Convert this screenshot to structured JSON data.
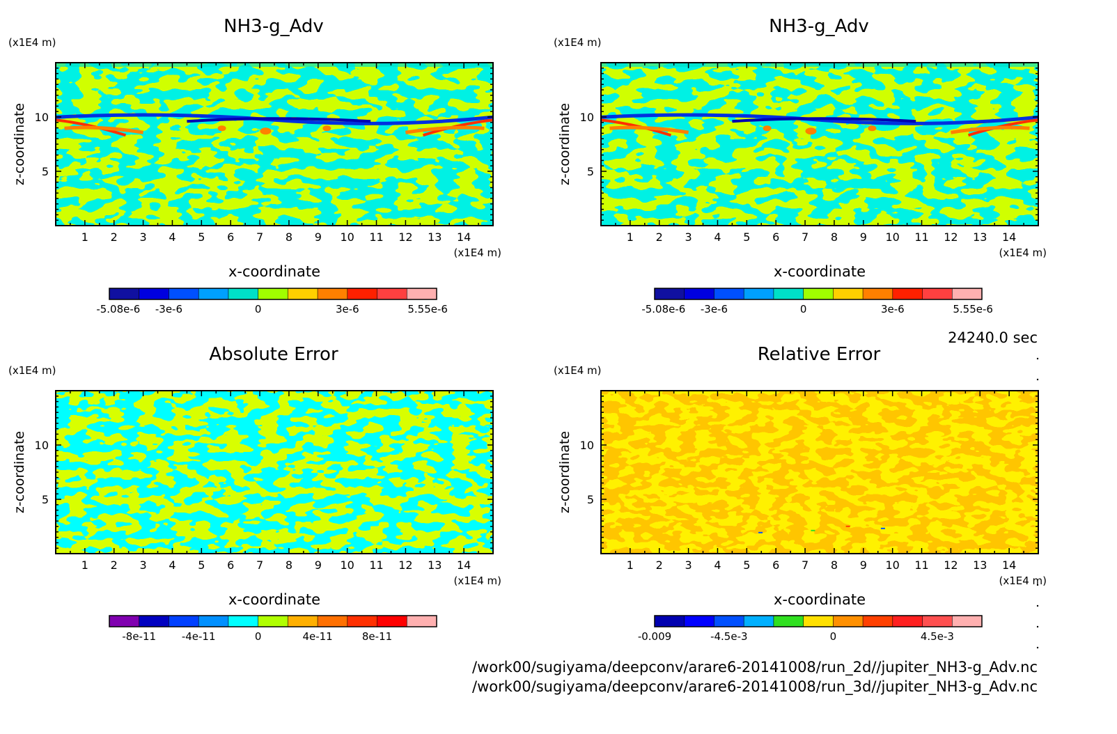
{
  "figure": {
    "time_label": "24240.0 sec",
    "file_paths": [
      "/work00/sugiyama/deepconv/arare6-20141008/run_2d//jupiter_NH3-g_Adv.nc",
      "/work00/sugiyama/deepconv/arare6-20141008/run_3d//jupiter_NH3-g_Adv.nc"
    ]
  },
  "chart_data": [
    {
      "type": "heatmap",
      "title": "NH3-g_Adv",
      "xlabel": "x-coordinate",
      "ylabel": "z-coordinate",
      "x_unit": "(x1E4 m)",
      "y_unit": "(x1E4 m)",
      "xlim": [
        0,
        15
      ],
      "ylim": [
        0,
        15
      ],
      "x_ticks": [
        1,
        2,
        3,
        4,
        5,
        6,
        7,
        8,
        9,
        10,
        11,
        12,
        13,
        14
      ],
      "y_ticks": [
        5,
        10
      ],
      "colorbar": {
        "colors": [
          "#1010a0",
          "#0000e0",
          "#0050ff",
          "#00a0ff",
          "#00e0c8",
          "#a0ff00",
          "#ffd000",
          "#ff8000",
          "#ff2000",
          "#ff4040",
          "#ffb0b0"
        ],
        "tick_labels": [
          "-5.08e-6",
          "-3e-6",
          "0",
          "3e-6",
          "5.55e-6"
        ]
      }
    },
    {
      "type": "heatmap",
      "title": "NH3-g_Adv",
      "xlabel": "x-coordinate",
      "ylabel": "z-coordinate",
      "x_unit": "(x1E4 m)",
      "y_unit": "(x1E4 m)",
      "xlim": [
        0,
        15
      ],
      "ylim": [
        0,
        15
      ],
      "x_ticks": [
        1,
        2,
        3,
        4,
        5,
        6,
        7,
        8,
        9,
        10,
        11,
        12,
        13,
        14
      ],
      "y_ticks": [
        5,
        10
      ],
      "colorbar": {
        "colors": [
          "#1010a0",
          "#0000e0",
          "#0050ff",
          "#00a0ff",
          "#00e0c8",
          "#a0ff00",
          "#ffd000",
          "#ff8000",
          "#ff2000",
          "#ff4040",
          "#ffb0b0"
        ],
        "tick_labels": [
          "-5.08e-6",
          "-3e-6",
          "0",
          "3e-6",
          "5.55e-6"
        ]
      }
    },
    {
      "type": "heatmap",
      "title": "Absolute Error",
      "xlabel": "x-coordinate",
      "ylabel": "z-coordinate",
      "x_unit": "(x1E4 m)",
      "y_unit": "(x1E4 m)",
      "xlim": [
        0,
        15
      ],
      "ylim": [
        0,
        15
      ],
      "x_ticks": [
        1,
        2,
        3,
        4,
        5,
        6,
        7,
        8,
        9,
        10,
        11,
        12,
        13,
        14
      ],
      "y_ticks": [
        5,
        10
      ],
      "colorbar": {
        "colors": [
          "#8000b0",
          "#0000c0",
          "#0040ff",
          "#0090ff",
          "#00ffff",
          "#b0ff00",
          "#ffb000",
          "#ff7000",
          "#ff3000",
          "#ff0000",
          "#ffb0b0"
        ],
        "tick_labels": [
          "-8e-11",
          "-4e-11",
          "0",
          "4e-11",
          "8e-11"
        ]
      }
    },
    {
      "type": "heatmap",
      "title": "Relative Error",
      "xlabel": "x-coordinate",
      "ylabel": "z-coordinate",
      "x_unit": "(x1E4 m)",
      "y_unit": "(x1E4 m)",
      "xlim": [
        0,
        15
      ],
      "ylim": [
        0,
        15
      ],
      "x_ticks": [
        1,
        2,
        3,
        4,
        5,
        6,
        7,
        8,
        9,
        10,
        11,
        12,
        13,
        14
      ],
      "y_ticks": [
        5,
        10
      ],
      "colorbar": {
        "colors": [
          "#0000b0",
          "#0000ff",
          "#0050ff",
          "#00b0ff",
          "#30e020",
          "#ffe000",
          "#ff9000",
          "#ff4000",
          "#ff2020",
          "#ff5050",
          "#ffb0b0"
        ],
        "tick_labels": [
          "-0.009",
          "-4.5e-3",
          "0",
          "4.5e-3"
        ]
      }
    }
  ]
}
